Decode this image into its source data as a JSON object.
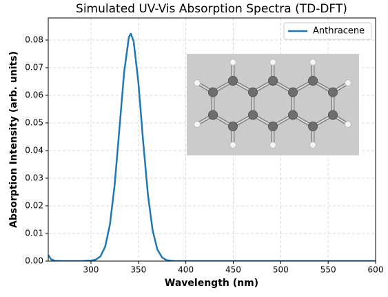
{
  "chart_data": {
    "type": "line",
    "title": "Simulated UV-Vis Absorption Spectra (TD-DFT)",
    "x_label": "Wavelength (nm)",
    "y_label": "Absorption Intensity (arb. units)",
    "x": [
      255,
      258,
      262,
      270,
      280,
      290,
      300,
      305,
      310,
      315,
      320,
      325,
      330,
      335,
      340,
      342,
      345,
      350,
      355,
      360,
      365,
      370,
      375,
      380,
      385,
      390,
      400,
      450,
      500,
      550,
      600
    ],
    "series": [
      {
        "name": "Anthracene",
        "color": "#1f77b4",
        "values": [
          0.0022,
          0.0006,
          0.0001,
          0,
          0,
          0,
          0.0002,
          0.0005,
          0.0017,
          0.0052,
          0.0132,
          0.0276,
          0.0478,
          0.0684,
          0.0811,
          0.0823,
          0.0796,
          0.0646,
          0.0434,
          0.0242,
          0.0111,
          0.0042,
          0.0013,
          0.0003,
          0.0001,
          0,
          0,
          0,
          0,
          0,
          0
        ]
      }
    ],
    "xlim": [
      255,
      600
    ],
    "xticks": [
      300,
      350,
      400,
      450,
      500,
      550,
      600
    ],
    "ylim": [
      0,
      0.088
    ],
    "yticks": [
      {
        "value": 0,
        "label": "0.00"
      },
      0.01,
      0.02,
      0.03,
      0.04,
      0.05,
      0.06,
      0.07,
      0.08
    ],
    "grid": true,
    "legend": "upper right"
  }
}
